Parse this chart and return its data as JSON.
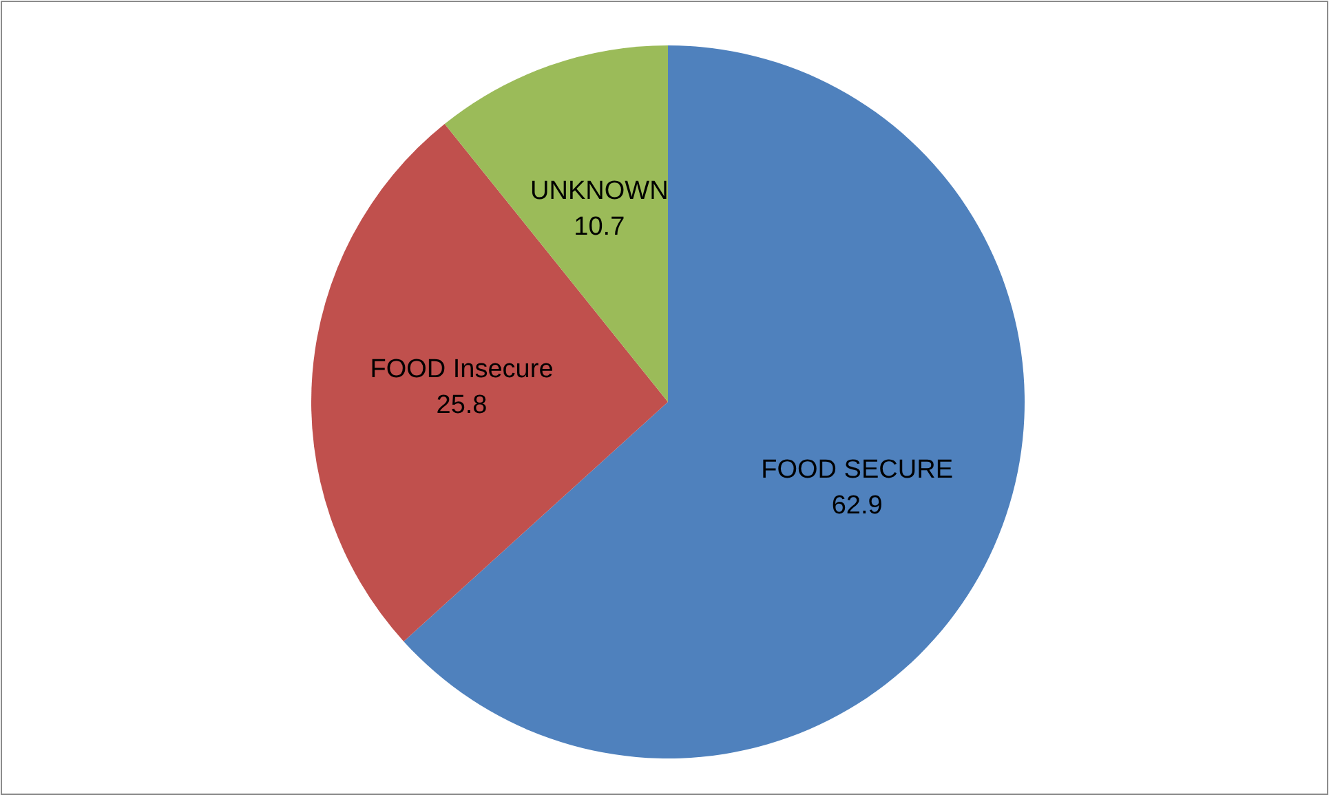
{
  "chart_data": {
    "type": "pie",
    "categories": [
      "FOOD SECURE",
      "FOOD Insecure",
      "UNKNOWN"
    ],
    "values": [
      62.9,
      25.8,
      10.7
    ],
    "colors": [
      "#4f81bd",
      "#c0504d",
      "#9bbb59"
    ],
    "data_labels": true,
    "legend": false
  }
}
